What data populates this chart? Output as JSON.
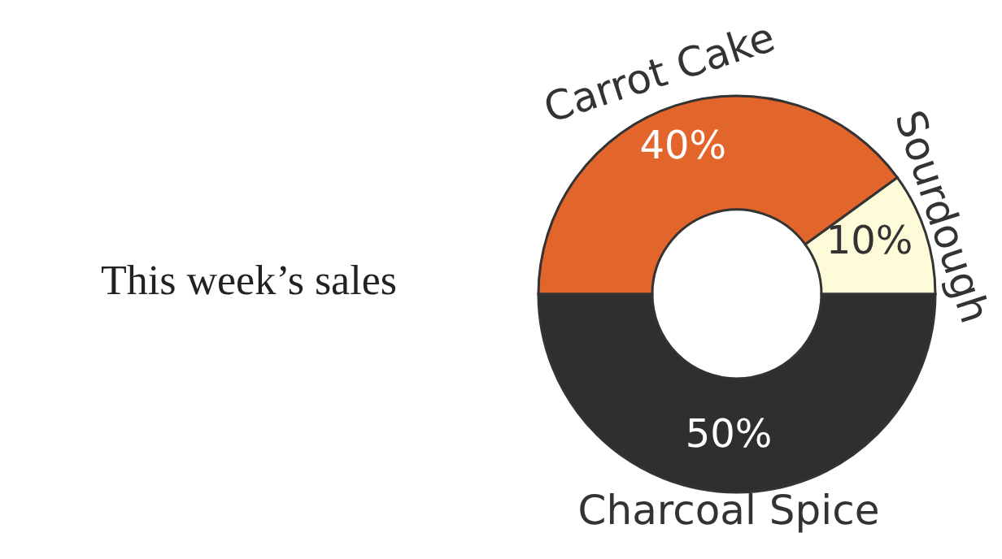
{
  "chart_data": {
    "type": "donut",
    "title": "This week’s sales",
    "categories": [
      "Carrot Cake",
      "Sourdough",
      "Charcoal Spice"
    ],
    "values": [
      40,
      10,
      50
    ],
    "colors": [
      "#e2652b",
      "#fdfbd8",
      "#2f2f2f"
    ],
    "value_labels": [
      "40%",
      "10%",
      "50%"
    ]
  }
}
